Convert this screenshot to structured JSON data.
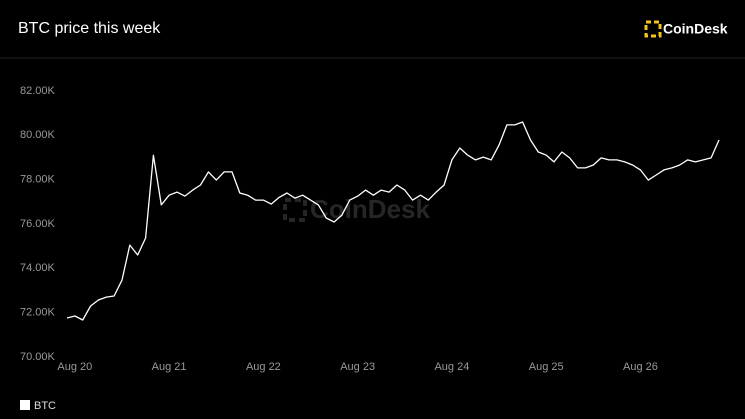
{
  "brand": "CoinDesk",
  "chart_data": {
    "type": "line",
    "title": "BTC price this week",
    "categories": [
      null,
      "Aug 20",
      null,
      null,
      null,
      null,
      null,
      null,
      null,
      null,
      null,
      null,
      null,
      "Aug 21",
      null,
      null,
      null,
      null,
      null,
      null,
      null,
      null,
      null,
      null,
      null,
      "Aug 22",
      null,
      null,
      null,
      null,
      null,
      null,
      null,
      null,
      null,
      null,
      null,
      "Aug 23",
      null,
      null,
      null,
      null,
      null,
      null,
      null,
      null,
      null,
      null,
      null,
      "Aug 24",
      null,
      null,
      null,
      null,
      null,
      null,
      null,
      null,
      null,
      null,
      null,
      "Aug 25",
      null,
      null,
      null,
      null,
      null,
      null,
      null,
      null,
      null,
      null,
      null,
      "Aug 26",
      null,
      null,
      null,
      null,
      null,
      null,
      null,
      null,
      null,
      null
    ],
    "series": [
      {
        "name": "BTC",
        "color": "#ffffff",
        "values": [
          71760,
          71850,
          71670,
          72300,
          72570,
          72700,
          72750,
          73470,
          75050,
          74600,
          75370,
          79100,
          76860,
          77300,
          77440,
          77260,
          77530,
          77760,
          78350,
          77980,
          78350,
          78350,
          77400,
          77300,
          77080,
          77080,
          76900,
          77200,
          77400,
          77170,
          77300,
          77080,
          76860,
          76270,
          76090,
          76400,
          77080,
          77260,
          77530,
          77300,
          77530,
          77440,
          77760,
          77530,
          77080,
          77300,
          77080,
          77440,
          77760,
          78890,
          79430,
          79110,
          78890,
          79020,
          78890,
          79560,
          80470,
          80470,
          80600,
          79790,
          79250,
          79110,
          78800,
          79250,
          78980,
          78530,
          78530,
          78660,
          78980,
          78890,
          78890,
          78800,
          78660,
          78440,
          77980,
          78210,
          78440,
          78530,
          78660,
          78890,
          78800,
          78890,
          78980,
          79790
        ]
      }
    ],
    "ylim": [
      70000,
      82000
    ],
    "yticks": [
      {
        "value": 70000,
        "label": "70.00K"
      },
      {
        "value": 72000,
        "label": "72.00K"
      },
      {
        "value": 74000,
        "label": "74.00K"
      },
      {
        "value": 76000,
        "label": "76.00K"
      },
      {
        "value": 78000,
        "label": "78.00K"
      },
      {
        "value": 80000,
        "label": "80.00K"
      },
      {
        "value": 82000,
        "label": "82.00K"
      }
    ],
    "grid": false
  }
}
